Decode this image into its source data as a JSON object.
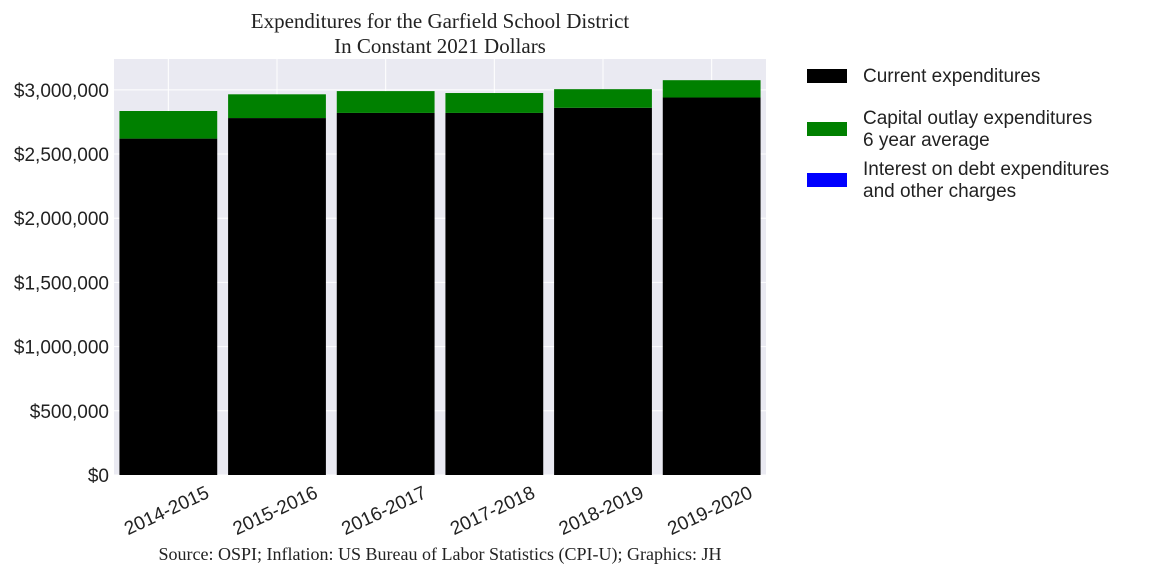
{
  "chart_data": {
    "type": "bar",
    "stacked": true,
    "title": "Expenditures for the Garfield School District",
    "subtitle": "In Constant 2021 Dollars",
    "xlabel": "",
    "ylabel": "",
    "categories": [
      "2014-2015",
      "2015-2016",
      "2016-2017",
      "2017-2018",
      "2018-2019",
      "2019-2020"
    ],
    "series": [
      {
        "name": "Current expenditures",
        "color": "#000000",
        "values": [
          2620000,
          2780000,
          2820000,
          2820000,
          2860000,
          2940000
        ]
      },
      {
        "name": "Capital outlay expenditures 6 year average",
        "name_lines": [
          "Capital outlay expenditures",
          "6 year average"
        ],
        "color": "#008000",
        "values": [
          215000,
          185000,
          170000,
          155000,
          145000,
          135000
        ]
      },
      {
        "name": "Interest on debt expenditures and other charges",
        "name_lines": [
          "Interest on debt expenditures",
          "and other charges"
        ],
        "color": "#0000ff",
        "values": [
          0,
          0,
          0,
          0,
          0,
          0
        ]
      }
    ],
    "ylim": [
      0,
      3240000
    ],
    "yticks": [
      0,
      500000,
      1000000,
      1500000,
      2000000,
      2500000,
      3000000
    ],
    "ytick_labels": [
      "$0",
      "$500,000",
      "$1,000,000",
      "$1,500,000",
      "$2,000,000",
      "$2,500,000",
      "$3,000,000"
    ],
    "grid": true,
    "legend_placement": "outside-top-right",
    "plot_background": "#eaeaf2",
    "source": "Source: OSPI; Inflation: US Bureau of Labor Statistics (CPI-U); Graphics: JH"
  }
}
